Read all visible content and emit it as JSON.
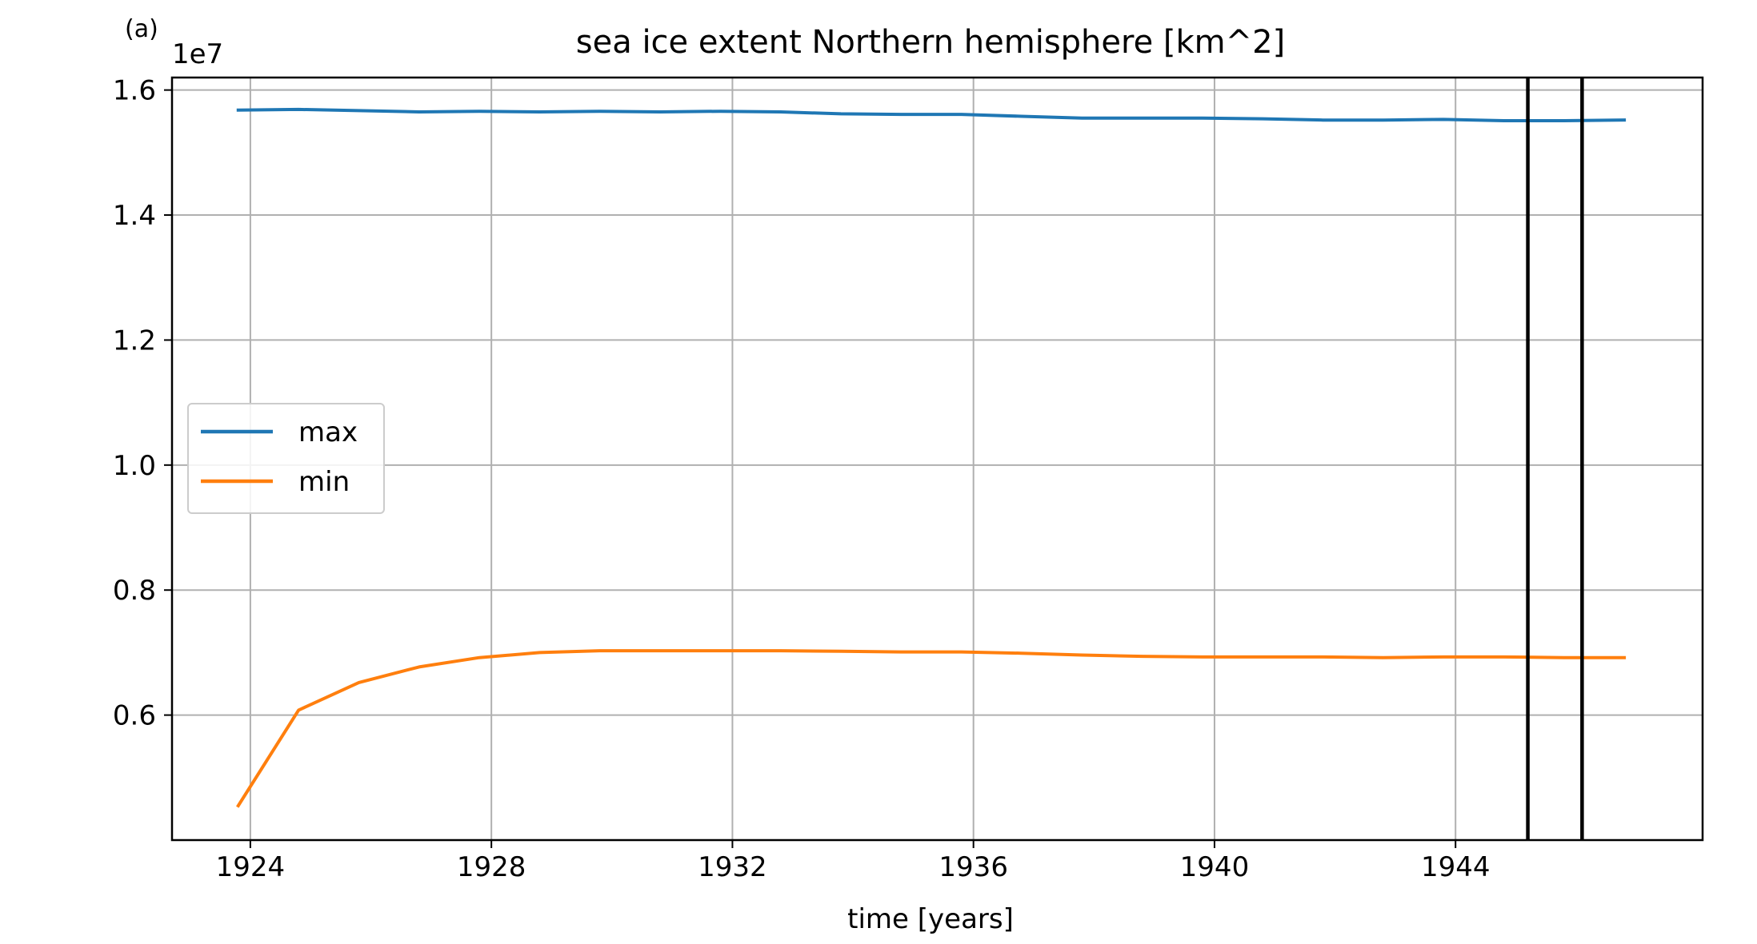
{
  "panel_label": "(a)",
  "chart_data": {
    "type": "line",
    "title": "sea ice extent Northern hemisphere [km^2]",
    "xlabel": "time [years]",
    "ylabel": "",
    "y_offset_label": "1e7",
    "y_scale_factor": 10000000,
    "xlim": [
      1922.7,
      1948.1
    ],
    "ylim": [
      0.4,
      1.62
    ],
    "x_ticks": [
      1924,
      1928,
      1932,
      1936,
      1940,
      1944
    ],
    "x_tick_labels": [
      "1924",
      "1928",
      "1932",
      "1936",
      "1940",
      "1944"
    ],
    "y_ticks": [
      0.6,
      0.8,
      1.0,
      1.2,
      1.4,
      1.6
    ],
    "y_tick_labels": [
      "0.6",
      "0.8",
      "1.0",
      "1.2",
      "1.4",
      "1.6"
    ],
    "grid": true,
    "legend_position": "center-left",
    "x": [
      1923.8,
      1924.8,
      1925.8,
      1926.8,
      1927.8,
      1928.8,
      1929.8,
      1930.8,
      1931.8,
      1932.8,
      1933.8,
      1934.8,
      1935.8,
      1936.8,
      1937.8,
      1938.8,
      1939.8,
      1940.8,
      1941.8,
      1942.8,
      1943.8,
      1944.8,
      1945.8,
      1946.8
    ],
    "series": [
      {
        "name": "max",
        "color": "#1f77b4",
        "values": [
          1.568,
          1.569,
          1.567,
          1.565,
          1.566,
          1.565,
          1.566,
          1.565,
          1.566,
          1.565,
          1.562,
          1.561,
          1.561,
          1.558,
          1.555,
          1.555,
          1.555,
          1.554,
          1.552,
          1.552,
          1.553,
          1.551,
          1.551,
          1.552
        ]
      },
      {
        "name": "min",
        "color": "#ff7f0e",
        "values": [
          0.455,
          0.608,
          0.652,
          0.677,
          0.692,
          0.7,
          0.703,
          0.703,
          0.703,
          0.703,
          0.702,
          0.701,
          0.701,
          0.699,
          0.696,
          0.694,
          0.693,
          0.693,
          0.693,
          0.692,
          0.693,
          0.693,
          0.692,
          0.692
        ]
      }
    ],
    "vertical_lines": [
      {
        "x": 1945.2,
        "color": "#000000"
      },
      {
        "x": 1946.1,
        "color": "#000000"
      }
    ]
  }
}
